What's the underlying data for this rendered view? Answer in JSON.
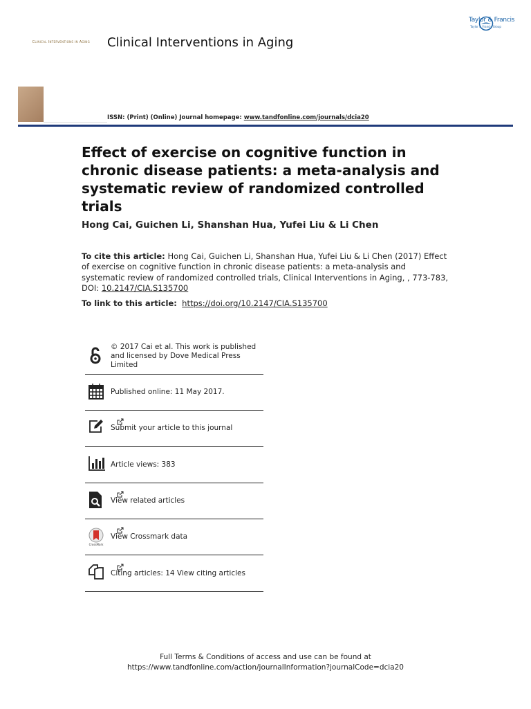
{
  "header": {
    "publisher": "Taylor & Francis",
    "publisher_group": "Taylor & Francis Group",
    "logo_text": "Clinical Interventions in Aging",
    "journal": "Clinical Interventions in Aging",
    "issn_label": "ISSN: (Print) (Online) Journal homepage:",
    "homepage": "www.tandfonline.com/journals/dcia20"
  },
  "article": {
    "title": "Effect of exercise on cognitive function in chronic disease patients: a meta-analysis and systematic review of randomized controlled trials",
    "authors": "Hong Cai, Guichen Li, Shanshan Hua, Yufei Liu & Li Chen",
    "cite_label": "To cite this article:",
    "cite_text": "Hong Cai, Guichen Li, Shanshan Hua, Yufei Liu & Li Chen (2017) Effect of exercise on cognitive function in chronic disease patients: a meta-analysis and systematic review of randomized controlled trials, Clinical Interventions in Aging, , 773-783, DOI:",
    "cite_doi": "10.2147/CIA.S135700",
    "link_label": "To link to this article:",
    "link_url": "https://doi.org/10.2147/CIA.S135700"
  },
  "info": [
    {
      "text": "© 2017 Cai et al. This work is published and licensed by Dove Medical Press Limited"
    },
    {
      "text": "Published online: 11 May 2017."
    },
    {
      "text": "Submit your article to this journal"
    },
    {
      "text": "Article views: 383"
    },
    {
      "text": "View related articles"
    },
    {
      "text": "View Crossmark data"
    },
    {
      "text": "Citing articles: 14 View citing articles"
    }
  ],
  "footer": {
    "line1": "Full Terms & Conditions of access and use can be found at",
    "line2": "https://www.tandfonline.com/action/journalInformation?journalCode=dcia20"
  }
}
